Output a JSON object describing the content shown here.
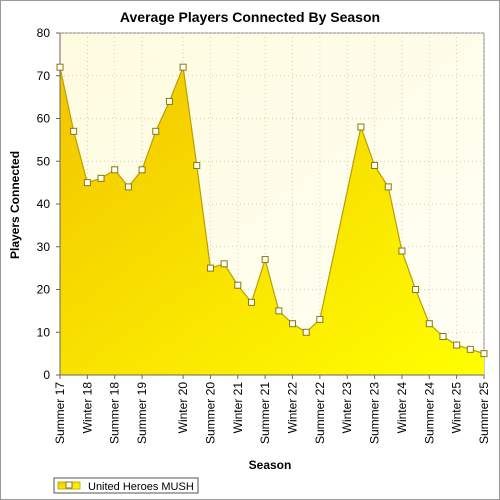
{
  "chart_data": {
    "type": "area",
    "title": "Average Players Connected By Season",
    "xlabel": "Season",
    "ylabel": "Players Connected",
    "ylim": [
      0,
      80
    ],
    "yticks": [
      0,
      10,
      20,
      30,
      40,
      50,
      60,
      70,
      80
    ],
    "grid": true,
    "legend_position": "bottom-left",
    "colors": {
      "fill_top": "#f2c400",
      "fill_bottom": "#ffff00",
      "line": "#b8a000",
      "plot_bg": "#fffde0",
      "grid": "#c8c8a0"
    },
    "x_tick_labels": [
      "Summer 17",
      "Winter 18",
      "Summer 18",
      "Summer 19",
      "Winter 20",
      "Summer 20",
      "Winter 21",
      "Summer 21",
      "Winter 22",
      "Summer 22",
      "Winter 23",
      "Summer 23",
      "Winter 24",
      "Summer 24",
      "Winter 25",
      "Summer 25"
    ],
    "x_tick_index": [
      0,
      2,
      4,
      6,
      9,
      11,
      13,
      15,
      17,
      19,
      21,
      23,
      25,
      27,
      29,
      31
    ],
    "series": [
      {
        "name": "United Heroes MUSH",
        "values": [
          72,
          57,
          45,
          46,
          48,
          44,
          48,
          57,
          64,
          72,
          49,
          25,
          26,
          21,
          17,
          27,
          15,
          12,
          10,
          13,
          28,
          43,
          58,
          49,
          44,
          29,
          20,
          12,
          9,
          7,
          6,
          5
        ],
        "markers": [
          true,
          true,
          true,
          true,
          true,
          true,
          true,
          true,
          true,
          true,
          true,
          true,
          true,
          true,
          true,
          true,
          true,
          true,
          true,
          true,
          false,
          false,
          true,
          true,
          true,
          true,
          true,
          true,
          true,
          true,
          true,
          true
        ]
      }
    ]
  }
}
